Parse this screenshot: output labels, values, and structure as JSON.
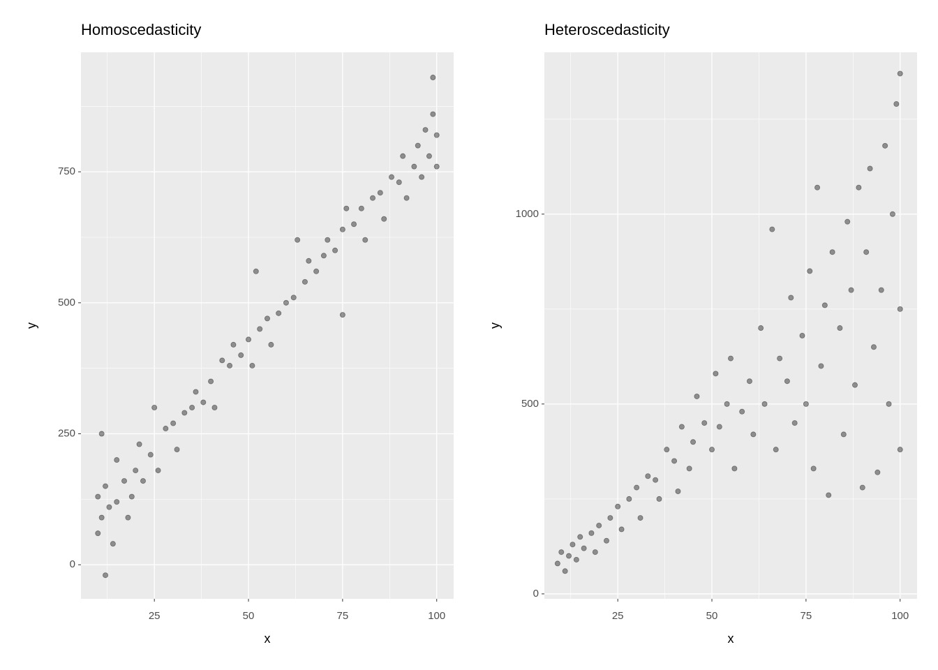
{
  "chart_data": [
    {
      "type": "scatter",
      "title": "Homoscedasticity",
      "x_label": "x",
      "y_label": "y",
      "color": "#000000",
      "alpha": 0.4,
      "grid": true,
      "xlim": [
        5.5,
        104.5
      ],
      "ylim": [
        -65,
        978
      ],
      "xticks": [
        25,
        50,
        75,
        100
      ],
      "yticks": [
        0,
        250,
        500,
        750
      ],
      "xminor": [
        12.5,
        37.5,
        62.5,
        87.5
      ],
      "yminor": [
        125,
        375,
        625,
        875
      ],
      "x": [
        10,
        10,
        11,
        11,
        12,
        12,
        13,
        14,
        15,
        15,
        17,
        18,
        19,
        20,
        21,
        22,
        24,
        25,
        26,
        28,
        30,
        31,
        33,
        35,
        36,
        38,
        40,
        41,
        43,
        45,
        46,
        48,
        50,
        51,
        52,
        53,
        55,
        56,
        58,
        60,
        62,
        63,
        65,
        66,
        68,
        70,
        71,
        73,
        75,
        76,
        78,
        80,
        81,
        83,
        85,
        86,
        88,
        90,
        91,
        92,
        94,
        95,
        96,
        97,
        98,
        99,
        99,
        100,
        100,
        75
      ],
      "values": [
        60,
        130,
        90,
        250,
        -20,
        150,
        110,
        40,
        120,
        200,
        160,
        90,
        130,
        180,
        230,
        160,
        210,
        300,
        180,
        260,
        270,
        220,
        290,
        300,
        330,
        310,
        350,
        300,
        390,
        380,
        420,
        400,
        430,
        380,
        560,
        450,
        470,
        420,
        480,
        500,
        510,
        620,
        540,
        580,
        560,
        590,
        620,
        600,
        640,
        680,
        650,
        680,
        620,
        700,
        710,
        660,
        740,
        730,
        780,
        700,
        760,
        800,
        740,
        830,
        780,
        860,
        930,
        760,
        820,
        477
      ]
    },
    {
      "type": "scatter",
      "title": "Heteroscedasticity",
      "x_label": "x",
      "y_label": "y",
      "color": "#000000",
      "alpha": 0.4,
      "grid": true,
      "xlim": [
        5.5,
        104.5
      ],
      "ylim": [
        -13,
        1426
      ],
      "xticks": [
        25,
        50,
        75,
        100
      ],
      "yticks": [
        0,
        500,
        1000
      ],
      "xminor": [
        12.5,
        37.5,
        62.5,
        87.5
      ],
      "yminor": [
        250,
        750,
        1250
      ],
      "x": [
        9,
        10,
        11,
        12,
        13,
        14,
        15,
        16,
        18,
        19,
        20,
        22,
        23,
        25,
        26,
        28,
        30,
        31,
        33,
        35,
        36,
        38,
        40,
        41,
        42,
        44,
        45,
        46,
        48,
        50,
        51,
        52,
        54,
        55,
        56,
        58,
        60,
        61,
        63,
        64,
        66,
        67,
        68,
        70,
        71,
        72,
        74,
        75,
        76,
        77,
        78,
        79,
        80,
        81,
        82,
        84,
        85,
        86,
        87,
        88,
        89,
        90,
        91,
        92,
        93,
        94,
        95,
        96,
        97,
        98,
        99,
        100,
        100,
        100
      ],
      "values": [
        80,
        110,
        60,
        100,
        130,
        90,
        150,
        120,
        160,
        110,
        180,
        140,
        200,
        230,
        170,
        250,
        280,
        200,
        310,
        300,
        250,
        380,
        350,
        270,
        440,
        330,
        400,
        520,
        450,
        380,
        580,
        440,
        500,
        620,
        330,
        480,
        560,
        420,
        700,
        500,
        960,
        380,
        620,
        560,
        780,
        450,
        680,
        500,
        850,
        330,
        1070,
        600,
        760,
        260,
        900,
        700,
        420,
        980,
        800,
        550,
        1070,
        280,
        900,
        1120,
        650,
        320,
        800,
        1180,
        500,
        1000,
        1290,
        380,
        1370,
        750
      ]
    }
  ]
}
